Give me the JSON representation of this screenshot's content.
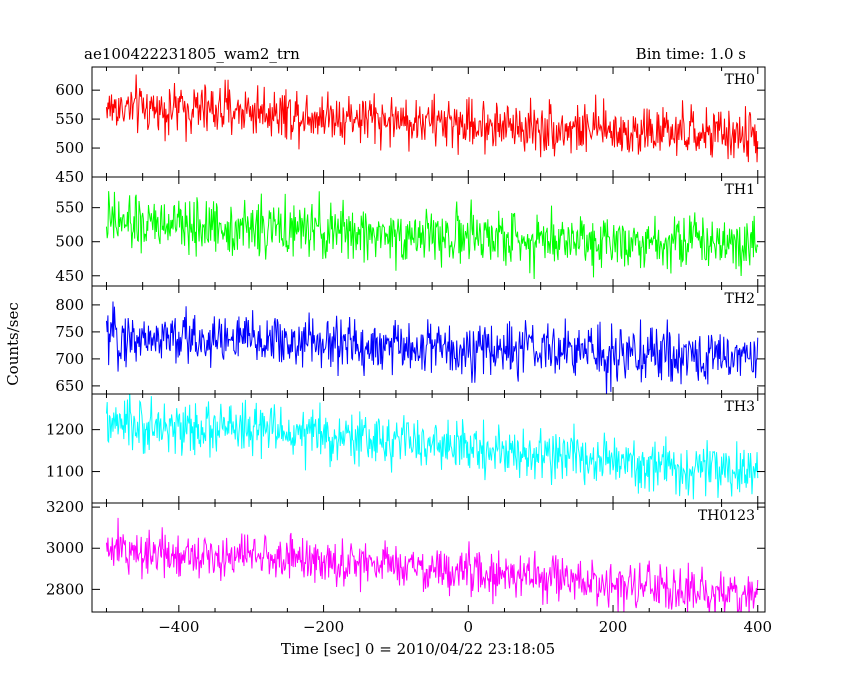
{
  "chart_data": {
    "type": "line",
    "title_left": "ae100422231805_wam2_trn",
    "title_right": "Bin time: 1.0 s",
    "xlabel": "Time [sec] 0 = 2010/04/22 23:18:05",
    "ylabel": "Counts/sec",
    "xlim": [
      -520,
      410
    ],
    "x_ticks": [
      -400,
      -200,
      0,
      200,
      400
    ],
    "x_range": [
      -500,
      400
    ],
    "grid": false,
    "panels": [
      {
        "name": "TH0",
        "color": "#ff0000",
        "ylim": [
          450,
          640
        ],
        "y_ticks": [
          450,
          500,
          550,
          600
        ],
        "trend": [
          [
            -500,
            570
          ],
          [
            -300,
            565
          ],
          [
            -100,
            548
          ],
          [
            100,
            535
          ],
          [
            300,
            525
          ],
          [
            400,
            520
          ]
        ],
        "noise": 22
      },
      {
        "name": "TH1",
        "color": "#00ff00",
        "ylim": [
          435,
          595
        ],
        "y_ticks": [
          450,
          500,
          550
        ],
        "trend": [
          [
            -500,
            527
          ],
          [
            -300,
            520
          ],
          [
            -100,
            510
          ],
          [
            100,
            504
          ],
          [
            300,
            502
          ],
          [
            400,
            500
          ]
        ],
        "noise": 20
      },
      {
        "name": "TH2",
        "color": "#0000ff",
        "ylim": [
          635,
          835
        ],
        "y_ticks": [
          650,
          700,
          750,
          800
        ],
        "trend": [
          [
            -500,
            740
          ],
          [
            -300,
            735
          ],
          [
            -100,
            722
          ],
          [
            100,
            715
          ],
          [
            300,
            705
          ],
          [
            400,
            705
          ]
        ],
        "noise": 25
      },
      {
        "name": "TH3",
        "color": "#00ffff",
        "ylim": [
          1025,
          1285
        ],
        "y_ticks": [
          1100,
          1200
        ],
        "trend": [
          [
            -500,
            1210
          ],
          [
            -300,
            1200
          ],
          [
            -100,
            1172
          ],
          [
            100,
            1140
          ],
          [
            300,
            1105
          ],
          [
            400,
            1095
          ]
        ],
        "noise": 30
      },
      {
        "name": "TH0123",
        "color": "#ff00ff",
        "ylim": [
          2690,
          3220
        ],
        "y_ticks": [
          2800,
          3000,
          3200
        ],
        "trend": [
          [
            -500,
            2990
          ],
          [
            -300,
            2965
          ],
          [
            -100,
            2910
          ],
          [
            100,
            2855
          ],
          [
            300,
            2790
          ],
          [
            400,
            2770
          ]
        ],
        "noise": 55
      }
    ]
  }
}
